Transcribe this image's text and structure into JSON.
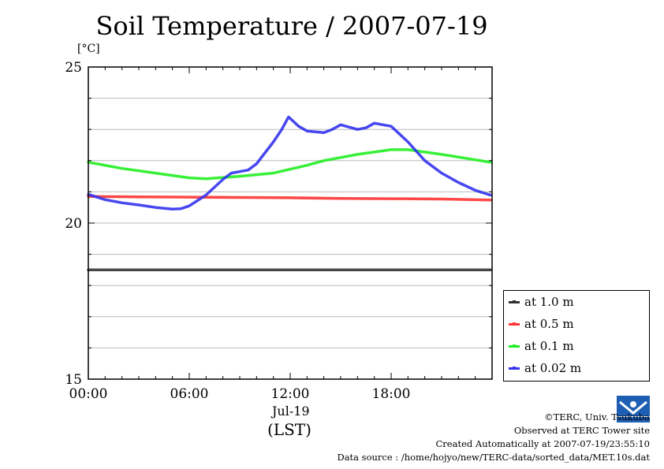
{
  "chart_data": {
    "type": "line",
    "title": "Soil Temperature / 2007-07-19",
    "ylabel": "[°C]",
    "xlabel": "(LST)",
    "date_label": "Jul-19",
    "xlim": [
      0,
      24
    ],
    "ylim": [
      15,
      25
    ],
    "x_ticks": [
      {
        "value": 0,
        "label": "00:00"
      },
      {
        "value": 6,
        "label": "06:00"
      },
      {
        "value": 12,
        "label": "12:00"
      },
      {
        "value": 18,
        "label": "18:00"
      }
    ],
    "y_ticks": [
      {
        "value": 15,
        "label": "15"
      },
      {
        "value": 20,
        "label": "20"
      },
      {
        "value": 25,
        "label": "25"
      }
    ],
    "grid": true,
    "legend_position": "right, below plot top",
    "series": [
      {
        "name": "at 1.0 m",
        "color": "#333333",
        "x": [
          0,
          3,
          6,
          9,
          12,
          15,
          18,
          21,
          23.9
        ],
        "y": [
          18.5,
          18.5,
          18.5,
          18.5,
          18.5,
          18.5,
          18.5,
          18.5,
          18.5
        ]
      },
      {
        "name": "at 0.5 m",
        "color": "#ff3333",
        "x": [
          0,
          3,
          6,
          9,
          12,
          15,
          18,
          21,
          23.9
        ],
        "y": [
          20.85,
          20.84,
          20.83,
          20.82,
          20.81,
          20.79,
          20.78,
          20.77,
          20.74
        ]
      },
      {
        "name": "at 0.1 m",
        "color": "#22ee22",
        "x": [
          0,
          2,
          4,
          6,
          7,
          9,
          11,
          13,
          14,
          16,
          18,
          19,
          21,
          23.9
        ],
        "y": [
          21.95,
          21.75,
          21.6,
          21.45,
          21.42,
          21.5,
          21.6,
          21.85,
          22.0,
          22.2,
          22.35,
          22.35,
          22.2,
          21.95
        ]
      },
      {
        "name": "at 0.02 m",
        "color": "#3333ee",
        "x": [
          0,
          1,
          2,
          3,
          4,
          5,
          5.5,
          6,
          7,
          8,
          8.5,
          9,
          9.5,
          10,
          11,
          11.5,
          11.9,
          12.5,
          13,
          14,
          14.5,
          15,
          16,
          16.5,
          17,
          18,
          19,
          20,
          21,
          22,
          23,
          23.9
        ],
        "y": [
          20.92,
          20.75,
          20.65,
          20.58,
          20.5,
          20.45,
          20.46,
          20.55,
          20.9,
          21.4,
          21.6,
          21.65,
          21.7,
          21.9,
          22.6,
          23.0,
          23.4,
          23.1,
          22.95,
          22.9,
          23.0,
          23.15,
          23.0,
          23.05,
          23.2,
          23.1,
          22.6,
          22.0,
          21.6,
          21.3,
          21.05,
          20.9
        ]
      }
    ]
  },
  "credits": {
    "copyright": "©TERC, Univ. Tsukuba",
    "site": "Observed at TERC Tower site",
    "created": "Created Automatically at 2007-07-19/23:55:10",
    "source": "Data source : /home/hojyo/new/TERC-data/sorted_data/MET.10s.dat"
  },
  "logo_icon": "terc-logo-icon"
}
